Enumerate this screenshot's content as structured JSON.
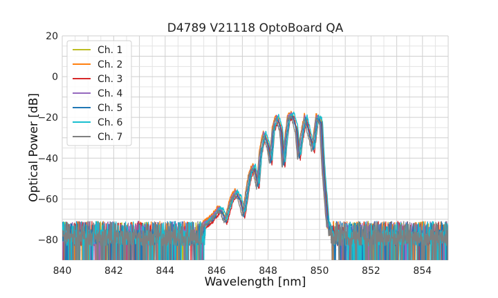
{
  "chart_data": {
    "type": "line",
    "title": "D4789 V21118 OptoBoard QA",
    "xlabel": "Wavelength [nm]",
    "ylabel": "Optical Power [dB]",
    "xlim": [
      840,
      855
    ],
    "ylim": [
      -90,
      20
    ],
    "xticks": [
      840,
      842,
      844,
      846,
      848,
      850,
      852,
      854
    ],
    "yticks": [
      -80,
      -60,
      -40,
      -20,
      0,
      20
    ],
    "xtick_labels": [
      "840",
      "842",
      "844",
      "846",
      "848",
      "850",
      "852",
      "854"
    ],
    "ytick_labels": [
      "−80",
      "−60",
      "−40",
      "−20",
      "0",
      "20"
    ],
    "grid": true,
    "legend_position": "top-left",
    "noise_floor_db": -77,
    "spectrum_profile": {
      "x": [
        845.4,
        845.6,
        845.8,
        846.0,
        846.1,
        846.2,
        846.35,
        846.5,
        846.6,
        846.75,
        846.9,
        847.05,
        847.2,
        847.3,
        847.45,
        847.6,
        847.7,
        847.85,
        848.0,
        848.1,
        848.2,
        848.35,
        848.5,
        848.6,
        848.7,
        848.8,
        848.95,
        849.1,
        849.2,
        849.3,
        849.45,
        849.6,
        849.75,
        849.9,
        850.05,
        850.15,
        850.3,
        850.4
      ],
      "y": [
        -74,
        -72,
        -70,
        -67,
        -65,
        -66,
        -71,
        -64,
        -60,
        -57,
        -60,
        -68,
        -55,
        -48,
        -44,
        -54,
        -38,
        -28,
        -34,
        -42,
        -26,
        -20,
        -26,
        -44,
        -30,
        -20,
        -19,
        -26,
        -40,
        -30,
        -20,
        -28,
        -36,
        -20,
        -22,
        -46,
        -70,
        -76
      ]
    },
    "series": [
      {
        "name": "Ch. 1",
        "color": "#bcbd22",
        "offset": 0.3,
        "dx": 0.02
      },
      {
        "name": "Ch. 2",
        "color": "#ff7f0e",
        "offset": 1.5,
        "dx": -0.04
      },
      {
        "name": "Ch. 3",
        "color": "#d62728",
        "offset": -1.2,
        "dx": 0.05
      },
      {
        "name": "Ch. 4",
        "color": "#9467bd",
        "offset": 0.8,
        "dx": -0.02
      },
      {
        "name": "Ch. 5",
        "color": "#1f77b4",
        "offset": -0.5,
        "dx": 0.01
      },
      {
        "name": "Ch. 6",
        "color": "#17becf",
        "offset": 1.0,
        "dx": 0.06
      },
      {
        "name": "Ch. 7",
        "color": "#7f7f7f",
        "offset": -0.8,
        "dx": -0.05
      }
    ]
  }
}
